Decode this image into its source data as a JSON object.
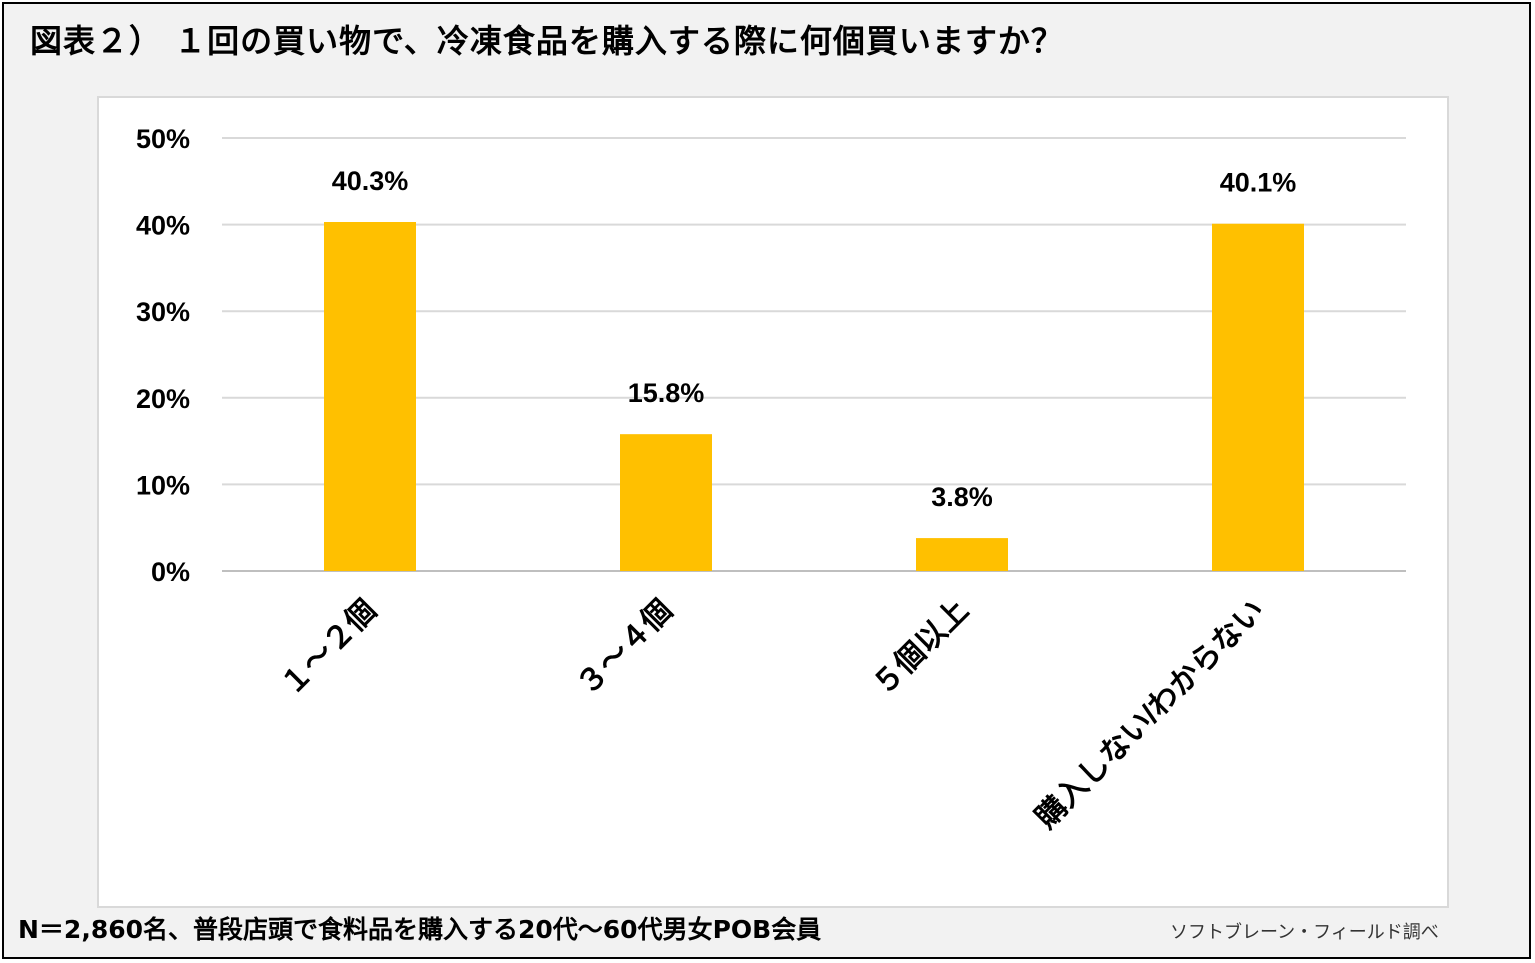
{
  "title": "図表２） １回の買い物で、冷凍食品を購入する際に何個買いますか？",
  "footnote": "N＝2,860名、普段店頭で食料品を購入する20代～60代男女POB会員",
  "source": "ソフトブレーン・フィールド調べ",
  "colors": {
    "bar": "#ffc000",
    "grid": "#d9d9d9",
    "axis": "#bfbfbf",
    "text": "#000000"
  },
  "chart_data": {
    "type": "bar",
    "categories": [
      "１～２個",
      "３～４個",
      "５個以上",
      "購入しない/わからない"
    ],
    "values": [
      40.3,
      15.8,
      3.8,
      40.1
    ],
    "data_labels": [
      "40.3%",
      "15.8%",
      "3.8%",
      "40.1%"
    ],
    "y_ticks": [
      "0%",
      "10%",
      "20%",
      "30%",
      "40%",
      "50%"
    ],
    "ylim": [
      0,
      50
    ],
    "grid": true,
    "legend": false
  }
}
